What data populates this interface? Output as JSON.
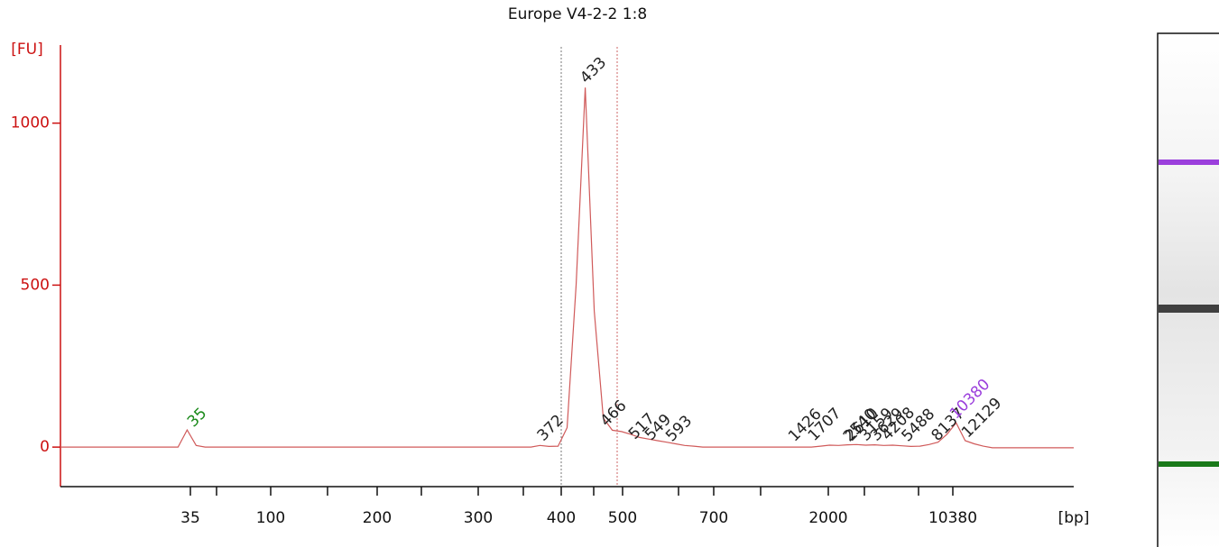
{
  "chart_data": {
    "type": "line",
    "title": "Europe V4-2-2 1:8",
    "ylabel": "[FU]",
    "xlabel": "[bp]",
    "ylim": [
      -122,
      1241
    ],
    "yticks": [
      0,
      500,
      1000
    ],
    "xticks": [
      35,
      100,
      200,
      300,
      400,
      500,
      700,
      2000,
      10380
    ],
    "series": [
      {
        "color": "#d05a5a",
        "values": [
          0,
          0,
          0,
          0,
          0,
          0,
          0,
          0,
          0,
          0,
          0,
          0,
          0,
          0,
          53,
          5,
          0,
          0,
          0,
          0,
          0,
          0,
          0,
          0,
          0,
          0,
          0,
          0,
          0,
          0,
          0,
          0,
          0,
          0,
          0,
          0,
          0,
          0,
          0,
          0,
          0,
          0,
          0,
          0,
          0,
          0,
          0,
          0,
          0,
          0,
          0,
          0,
          0,
          5,
          2,
          3,
          60,
          500,
          1110,
          420,
          90,
          52,
          48,
          40,
          30,
          25,
          20,
          15,
          10,
          5,
          3,
          0,
          0,
          0,
          0,
          0,
          0,
          0,
          0,
          0,
          0,
          0,
          0,
          0,
          3,
          6,
          5,
          7,
          8,
          6,
          7,
          5,
          6,
          4,
          2,
          3,
          8,
          15,
          40,
          75,
          20,
          10,
          3,
          -2,
          -2,
          -2,
          -2,
          -2,
          -2,
          -2,
          -2,
          -2,
          -2
        ]
      }
    ],
    "peaks": [
      {
        "x": 35,
        "y": 53,
        "color": "#1a8a1a"
      },
      {
        "x": 372,
        "y": 10,
        "color": "#222222"
      },
      {
        "x": 433,
        "y": 1114,
        "color": "#222222"
      },
      {
        "x": 466,
        "y": 55,
        "color": "#222222"
      },
      {
        "x": 517,
        "y": 15,
        "color": "#222222"
      },
      {
        "x": 549,
        "y": 12,
        "color": "#222222"
      },
      {
        "x": 593,
        "y": 8,
        "color": "#222222"
      },
      {
        "x": 1426,
        "y": 8,
        "color": "#222222"
      },
      {
        "x": 1707,
        "y": 10,
        "color": "#222222"
      },
      {
        "x": 2540,
        "y": 8,
        "color": "#222222"
      },
      {
        "x": 2610,
        "y": 10,
        "color": "#222222"
      },
      {
        "x": 3159,
        "y": 10,
        "color": "#222222"
      },
      {
        "x": 3629,
        "y": 10,
        "color": "#222222"
      },
      {
        "x": 4208,
        "y": 12,
        "color": "#222222"
      },
      {
        "x": 5488,
        "y": 8,
        "color": "#222222"
      },
      {
        "x": 8137,
        "y": 10,
        "color": "#222222"
      },
      {
        "x": 10380,
        "y": 78,
        "color": "#9b3fdc"
      },
      {
        "x": 12129,
        "y": 20,
        "color": "#222222"
      }
    ]
  }
}
